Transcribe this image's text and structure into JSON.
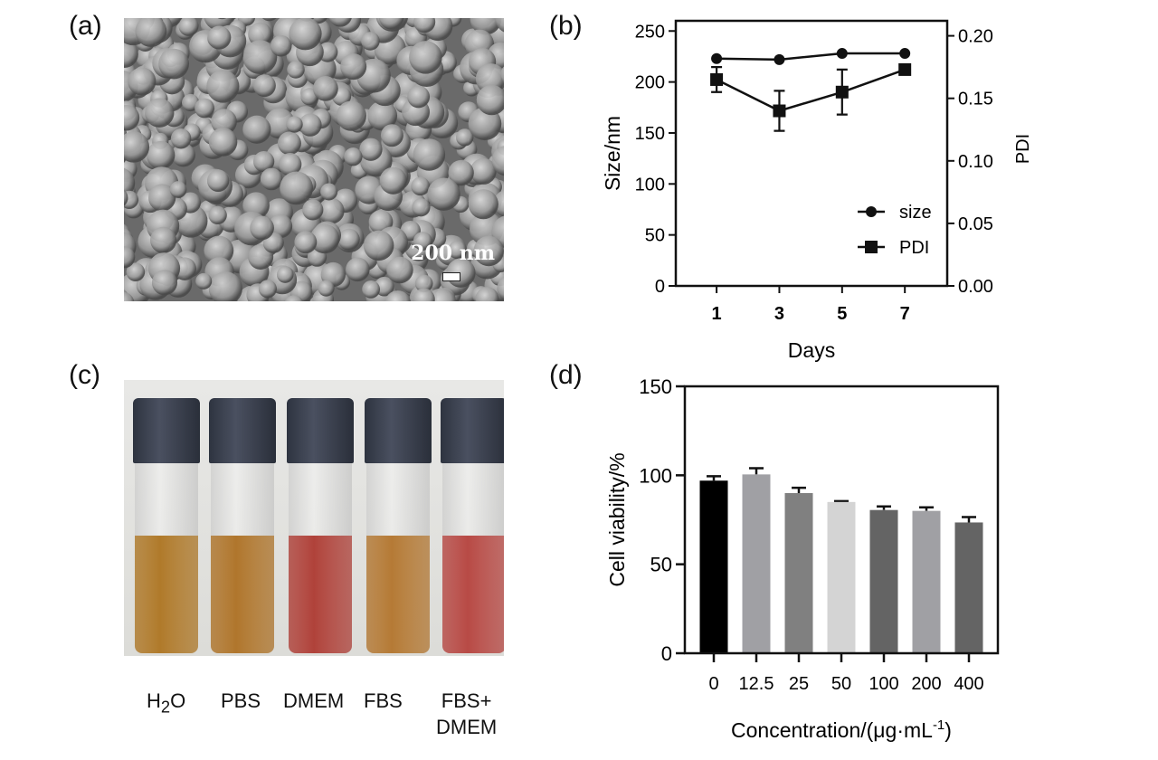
{
  "panels": {
    "a": {
      "label": "(a)",
      "scale_bar": "200 nm"
    },
    "b": {
      "label": "(b)"
    },
    "c": {
      "label": "(c)",
      "vials": [
        {
          "name": "H2O",
          "line1": "H",
          "sub": "2",
          "line1b": "O",
          "color": "#b07a2a"
        },
        {
          "name": "PBS",
          "line1": "PBS",
          "color": "#b0762c"
        },
        {
          "name": "DMEM",
          "line1": "DMEM",
          "color": "#b0423a"
        },
        {
          "name": "FBS",
          "line1": "FBS",
          "color": "#b57a35"
        },
        {
          "name": "FBS+DMEM",
          "line1": "FBS+",
          "line2": "DMEM",
          "color": "#b84a45"
        }
      ]
    },
    "d": {
      "label": "(d)"
    }
  },
  "chart_data": [
    {
      "type": "line",
      "panel": "b",
      "xlabel": "Days",
      "ylabel": "Size/nm",
      "y2label": "PDI",
      "x": [
        1,
        3,
        5,
        7
      ],
      "xticks": [
        "1",
        "3",
        "5",
        "7"
      ],
      "ylim": [
        0,
        260
      ],
      "yticks": [
        0,
        50,
        100,
        150,
        200,
        250
      ],
      "y2lim": [
        0,
        0.212
      ],
      "y2ticks": [
        "0.00",
        "0.05",
        "0.10",
        "0.15",
        "0.20"
      ],
      "xlim": [
        -0.3,
        8.35
      ],
      "legend_position": "bottom-right",
      "series": [
        {
          "name": "size",
          "axis": "left",
          "marker": "circle",
          "values": [
            223,
            222,
            228,
            228
          ],
          "errors": [
            0,
            0,
            0,
            0
          ]
        },
        {
          "name": "PDI",
          "axis": "right",
          "marker": "square",
          "values": [
            0.165,
            0.14,
            0.155,
            0.173
          ],
          "errors": [
            0.01,
            0.016,
            0.018,
            0.003
          ]
        }
      ]
    },
    {
      "type": "bar",
      "panel": "d",
      "xlabel": "Concentration/(μg·mL",
      "xlabel_sup": "-1",
      "xlabel_end": ")",
      "ylabel": "Cell viability/%",
      "categories": [
        "0",
        "12.5",
        "25",
        "50",
        "100",
        "200",
        "400"
      ],
      "values": [
        97,
        100.5,
        90,
        85,
        80.5,
        80,
        73.5
      ],
      "errors": [
        2.5,
        3.5,
        3,
        0.5,
        2,
        2,
        3
      ],
      "colors": [
        "#000000",
        "#a0a0a4",
        "#808080",
        "#d4d4d4",
        "#646464",
        "#a0a0a4",
        "#646464"
      ],
      "ylim": [
        0,
        150
      ],
      "yticks": [
        0,
        50,
        100,
        150
      ]
    }
  ]
}
